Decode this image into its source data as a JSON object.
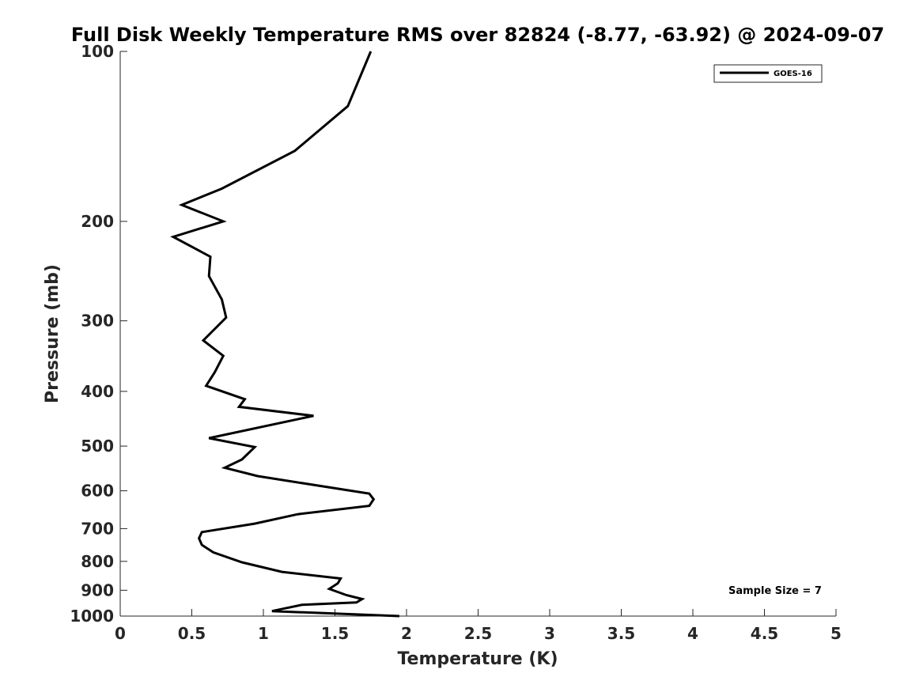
{
  "chart_data": {
    "type": "line",
    "title": "Full Disk Weekly Temperature RMS over 82824 (-8.77, -63.92) @ 2024-09-07",
    "xlabel": "Temperature (K)",
    "ylabel": "Pressure (mb)",
    "xlim": [
      0,
      5
    ],
    "ylim": [
      100,
      1000
    ],
    "yscale": "log",
    "y_reversed": true,
    "grid": false,
    "legend_position": "top-right",
    "x_ticks": [
      0,
      0.5,
      1,
      1.5,
      2,
      2.5,
      3,
      3.5,
      4,
      4.5,
      5
    ],
    "x_tick_labels": [
      "0",
      "0.5",
      "1",
      "1.5",
      "2",
      "2.5",
      "3",
      "3.5",
      "4",
      "4.5",
      "5"
    ],
    "y_ticks": [
      100,
      200,
      300,
      400,
      500,
      600,
      700,
      800,
      900,
      1000
    ],
    "y_tick_labels": [
      "100",
      "200",
      "300",
      "400",
      "500",
      "600",
      "700",
      "800",
      "900",
      "1000"
    ],
    "series": [
      {
        "name": "GOES-16",
        "color": "#000000",
        "points": [
          [
            1.75,
            100
          ],
          [
            1.59,
            125
          ],
          [
            1.22,
            150
          ],
          [
            0.71,
            175
          ],
          [
            0.43,
            187
          ],
          [
            0.72,
            200
          ],
          [
            0.37,
            213
          ],
          [
            0.63,
            231
          ],
          [
            0.62,
            250
          ],
          [
            0.71,
            275
          ],
          [
            0.74,
            296
          ],
          [
            0.58,
            325
          ],
          [
            0.72,
            346
          ],
          [
            0.66,
            370
          ],
          [
            0.6,
            391
          ],
          [
            0.87,
            413
          ],
          [
            0.83,
            426
          ],
          [
            1.35,
            442
          ],
          [
            0.62,
            484
          ],
          [
            0.94,
            502
          ],
          [
            0.85,
            528
          ],
          [
            0.73,
            546
          ],
          [
            0.96,
            565
          ],
          [
            1.74,
            607
          ],
          [
            1.77,
            621
          ],
          [
            1.74,
            638
          ],
          [
            1.24,
            660
          ],
          [
            0.94,
            686
          ],
          [
            0.57,
            710
          ],
          [
            0.55,
            728
          ],
          [
            0.57,
            748
          ],
          [
            0.65,
            771
          ],
          [
            0.85,
            803
          ],
          [
            1.13,
            835
          ],
          [
            1.54,
            858
          ],
          [
            1.52,
            875
          ],
          [
            1.46,
            895
          ],
          [
            1.58,
            918
          ],
          [
            1.69,
            933
          ],
          [
            1.65,
            946
          ],
          [
            1.27,
            955
          ],
          [
            1.06,
            980
          ],
          [
            1.95,
            1000
          ]
        ]
      }
    ],
    "annotations": [
      "Sample Size = 7"
    ]
  }
}
